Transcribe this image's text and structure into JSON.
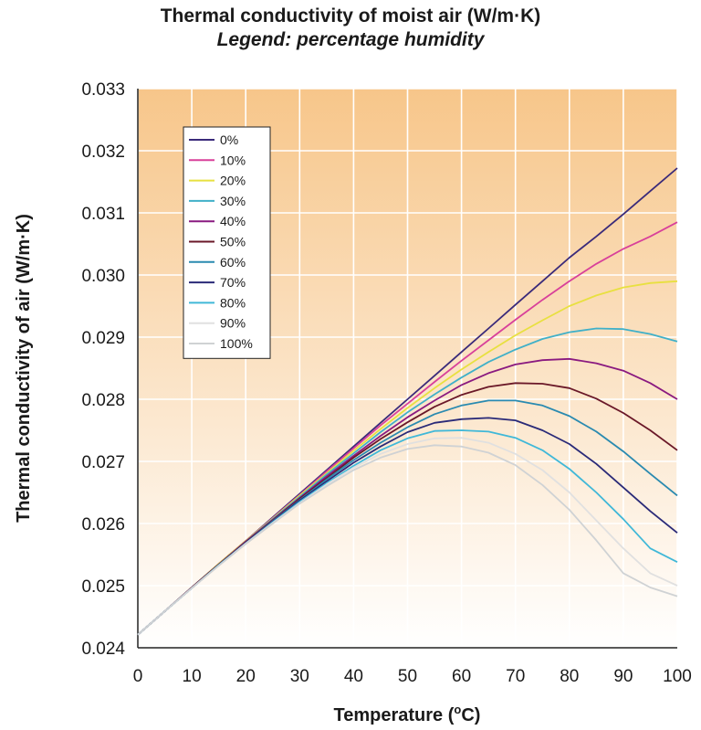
{
  "chart_data": {
    "type": "line",
    "title": "Thermal conductivity of moist air (W/m·K)",
    "subtitle": "Legend: percentage humidity",
    "xlabel": "Temperature (°C)",
    "xlabel_main": "Temperature (",
    "xlabel_sup": "o",
    "xlabel_end": "C)",
    "ylabel": "Thermal conductivity of air (W/m·K)",
    "xlim": [
      0,
      100
    ],
    "ylim": [
      0.024,
      0.033
    ],
    "x_ticks": [
      "0",
      "10",
      "20",
      "30",
      "40",
      "50",
      "60",
      "70",
      "80",
      "90",
      "100"
    ],
    "y_ticks": [
      "0.024",
      "0.025",
      "0.026",
      "0.027",
      "0.028",
      "0.029",
      "0.030",
      "0.031",
      "0.032",
      "0.033"
    ],
    "grid": true,
    "legend_position": "top-left",
    "background_gradient": [
      "#f7c68a",
      "#ffffff"
    ],
    "x": [
      0,
      5,
      10,
      15,
      20,
      25,
      30,
      35,
      40,
      45,
      50,
      55,
      60,
      65,
      70,
      75,
      80,
      85,
      90,
      95,
      100
    ],
    "series": [
      {
        "name": "0%",
        "color": "#3a2a7a",
        "values": [
          0.02421,
          0.02459,
          0.02497,
          0.02535,
          0.02572,
          0.0261,
          0.02648,
          0.02686,
          0.02724,
          0.02762,
          0.028,
          0.02838,
          0.02876,
          0.02914,
          0.02952,
          0.0299,
          0.03028,
          0.03062,
          0.03098,
          0.03135,
          0.03172
        ]
      },
      {
        "name": "10%",
        "color": "#d8409a",
        "values": [
          0.02421,
          0.02459,
          0.02497,
          0.02535,
          0.02572,
          0.02609,
          0.02646,
          0.02684,
          0.02721,
          0.02758,
          0.02793,
          0.02828,
          0.02862,
          0.02895,
          0.02928,
          0.0296,
          0.0299,
          0.03018,
          0.03042,
          0.03062,
          0.03085
        ]
      },
      {
        "name": "20%",
        "color": "#e8e040",
        "values": [
          0.02421,
          0.02459,
          0.02497,
          0.02535,
          0.02572,
          0.02608,
          0.02645,
          0.02681,
          0.02717,
          0.02752,
          0.02786,
          0.02818,
          0.02848,
          0.02876,
          0.02903,
          0.02927,
          0.0295,
          0.02967,
          0.0298,
          0.02987,
          0.0299
        ]
      },
      {
        "name": "30%",
        "color": "#40b0c8",
        "values": [
          0.02421,
          0.02459,
          0.02497,
          0.02534,
          0.02571,
          0.02607,
          0.02643,
          0.02679,
          0.02713,
          0.02747,
          0.02779,
          0.02808,
          0.02835,
          0.0286,
          0.0288,
          0.02897,
          0.02908,
          0.02914,
          0.02913,
          0.02905,
          0.02893
        ]
      },
      {
        "name": "40%",
        "color": "#8a1a80",
        "values": [
          0.02421,
          0.02459,
          0.02497,
          0.02534,
          0.02571,
          0.02606,
          0.02641,
          0.02676,
          0.02709,
          0.02741,
          0.02771,
          0.02798,
          0.02823,
          0.02842,
          0.02856,
          0.02863,
          0.02865,
          0.02858,
          0.02846,
          0.02826,
          0.028
        ]
      },
      {
        "name": "50%",
        "color": "#6a1828",
        "values": [
          0.02421,
          0.02459,
          0.02497,
          0.02534,
          0.0257,
          0.02605,
          0.0264,
          0.02673,
          0.02706,
          0.02736,
          0.02763,
          0.02788,
          0.02807,
          0.0282,
          0.02826,
          0.02825,
          0.02818,
          0.02801,
          0.02778,
          0.0275,
          0.02718
        ]
      },
      {
        "name": "60%",
        "color": "#2a8ab0",
        "values": [
          0.02421,
          0.02459,
          0.02496,
          0.02533,
          0.02569,
          0.02604,
          0.02638,
          0.02671,
          0.02702,
          0.0273,
          0.02755,
          0.02776,
          0.0279,
          0.02798,
          0.02798,
          0.0279,
          0.02773,
          0.02748,
          0.02716,
          0.0268,
          0.02645
        ]
      },
      {
        "name": "70%",
        "color": "#2a2a78",
        "values": [
          0.02421,
          0.02459,
          0.02496,
          0.02533,
          0.02569,
          0.02603,
          0.02637,
          0.02668,
          0.02698,
          0.02724,
          0.02747,
          0.02762,
          0.02768,
          0.0277,
          0.02766,
          0.0275,
          0.02728,
          0.02696,
          0.02658,
          0.0262,
          0.02585
        ]
      },
      {
        "name": "80%",
        "color": "#40b8d8",
        "values": [
          0.02421,
          0.02459,
          0.02496,
          0.02533,
          0.02568,
          0.02602,
          0.02635,
          0.02665,
          0.02693,
          0.02718,
          0.02737,
          0.02749,
          0.0275,
          0.02748,
          0.02738,
          0.02718,
          0.02688,
          0.0265,
          0.02607,
          0.0256,
          0.02538
        ]
      },
      {
        "name": "90%",
        "color": "#e0e0e0",
        "values": [
          0.02421,
          0.02459,
          0.02496,
          0.02532,
          0.02568,
          0.02601,
          0.02633,
          0.02663,
          0.0269,
          0.02712,
          0.02728,
          0.02737,
          0.02738,
          0.0273,
          0.02712,
          0.02686,
          0.0265,
          0.02605,
          0.0256,
          0.0252,
          0.025
        ]
      },
      {
        "name": "100%",
        "color": "#cfd2d4",
        "values": [
          0.02421,
          0.02459,
          0.02496,
          0.02532,
          0.02567,
          0.026,
          0.02632,
          0.0266,
          0.02686,
          0.02706,
          0.0272,
          0.02726,
          0.02724,
          0.02714,
          0.02694,
          0.02662,
          0.02622,
          0.02573,
          0.0252,
          0.02497,
          0.02483
        ]
      }
    ]
  }
}
